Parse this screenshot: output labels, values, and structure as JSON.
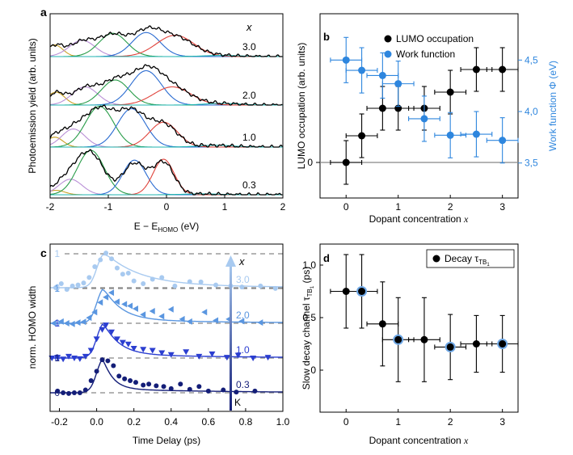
{
  "chart_data": [
    {
      "panel": "a",
      "type": "line",
      "ylabel": "Photoemission yield (arb. units)",
      "xlabel_main": "E − E",
      "xlabel_sub": "HOMO",
      "xlabel_unit": " (eV)",
      "xlim": [
        -2,
        2
      ],
      "xticks": [
        "-2",
        "-1",
        "0",
        "1",
        "2"
      ],
      "var_label": "x",
      "spectra": [
        {
          "label": "3.0",
          "peaks": [
            {
              "c": -1.92,
              "a": 0.3,
              "s": 0.14
            },
            {
              "c": -1.45,
              "a": 0.42,
              "s": 0.22
            },
            {
              "c": -0.92,
              "a": 0.6,
              "s": 0.24
            },
            {
              "c": -0.35,
              "a": 0.62,
              "s": 0.24
            },
            {
              "c": 0.15,
              "a": 0.55,
              "s": 0.32
            },
            {
              "c": 0.95,
              "a": 0.03,
              "s": 0.3
            }
          ]
        },
        {
          "label": "2.0",
          "peaks": [
            {
              "c": -1.9,
              "a": 0.32,
              "s": 0.15
            },
            {
              "c": -1.4,
              "a": 0.45,
              "s": 0.22
            },
            {
              "c": -0.88,
              "a": 0.62,
              "s": 0.24
            },
            {
              "c": -0.35,
              "a": 0.85,
              "s": 0.26
            },
            {
              "c": 0.1,
              "a": 0.45,
              "s": 0.32
            },
            {
              "c": 0.95,
              "a": 0.04,
              "s": 0.3
            }
          ]
        },
        {
          "label": "1.0",
          "peaks": [
            {
              "c": -1.92,
              "a": 0.22,
              "s": 0.14
            },
            {
              "c": -1.6,
              "a": 0.4,
              "s": 0.2
            },
            {
              "c": -1.15,
              "a": 0.9,
              "s": 0.24
            },
            {
              "c": -0.6,
              "a": 0.85,
              "s": 0.24
            },
            {
              "c": -0.05,
              "a": 0.55,
              "s": 0.24
            },
            {
              "c": 0.85,
              "a": 0.04,
              "s": 0.3
            }
          ]
        },
        {
          "label": "0.3",
          "peaks": [
            {
              "c": -1.9,
              "a": 0.1,
              "s": 0.15
            },
            {
              "c": -1.65,
              "a": 0.35,
              "s": 0.2
            },
            {
              "c": -1.3,
              "a": 1.0,
              "s": 0.23
            },
            {
              "c": -0.55,
              "a": 0.78,
              "s": 0.2
            },
            {
              "c": -0.05,
              "a": 0.8,
              "s": 0.18
            },
            {
              "c": 0.6,
              "a": 0.02,
              "s": 0.3
            }
          ]
        }
      ],
      "component_colors": [
        "#c9a227",
        "#b98fd6",
        "#2a9d4a",
        "#2a6bd1",
        "#e0443c",
        "#21b5b0"
      ]
    },
    {
      "panel": "b",
      "type": "scatter",
      "xlabel": "Dopant concentration",
      "xlabel_var": "x",
      "ylabel_left": "LUMO occupation (arb. units)",
      "ylabel_right": "Work function Φ (eV)",
      "xlim": [
        -0.5,
        3.3
      ],
      "xticks": [
        "0",
        "1",
        "2",
        "3"
      ],
      "yticks_right": [
        "3,5",
        "4,0",
        "4,5"
      ],
      "ylim_right": [
        3.16,
        4.95
      ],
      "left_tick": "0",
      "series": [
        {
          "name": "LUMO occupation",
          "color": "#000000",
          "x": [
            0,
            0.3,
            0.7,
            1.0,
            1.5,
            2.0,
            2.5,
            3.0
          ],
          "y": [
            0.0,
            0.33,
            0.67,
            0.67,
            0.67,
            0.87,
            1.15,
            1.15
          ],
          "xerr": [
            0.3,
            0.3,
            0.3,
            0.3,
            0.3,
            0.3,
            0.3,
            0.3
          ],
          "yerr": [
            0.27,
            0.27,
            0.27,
            0.27,
            0.27,
            0.27,
            0.27,
            0.27
          ]
        },
        {
          "name": "Work function",
          "color": "#2e86de",
          "x": [
            0,
            0.3,
            0.7,
            1.0,
            1.5,
            2.0,
            2.5,
            3.0
          ],
          "y": [
            4.5,
            4.4,
            4.35,
            4.27,
            3.93,
            3.77,
            3.78,
            3.72
          ],
          "xerr": [
            0.3,
            0.3,
            0.3,
            0.3,
            0.3,
            0.3,
            0.3,
            0.3
          ],
          "yerr": [
            0.22,
            0.22,
            0.22,
            0.22,
            0.22,
            0.22,
            0.22,
            0.22
          ]
        }
      ]
    },
    {
      "panel": "c",
      "type": "scatter",
      "xlabel": "Time Delay (ps)",
      "ylabel": "norm. HOMO width",
      "xlim": [
        -0.25,
        1.0
      ],
      "xticks": [
        "-0.2",
        "0.0",
        "0.2",
        "0.4",
        "0.6",
        "0.8",
        "1.0"
      ],
      "var_label": "x",
      "arrow_bottom_label": "K",
      "series": [
        {
          "label": "3.0",
          "marker": "circle",
          "color": "#a8caf0",
          "x": [
            -0.22,
            -0.19,
            -0.16,
            -0.13,
            -0.1,
            -0.07,
            -0.04,
            -0.01,
            0.02,
            0.05,
            0.08,
            0.11,
            0.14,
            0.17,
            0.2,
            0.25,
            0.3,
            0.35,
            0.42,
            0.5,
            0.56,
            0.64,
            0.72,
            0.78,
            0.88,
            0.96
          ],
          "y": [
            0.0,
            0.12,
            -0.05,
            0.05,
            0.08,
            0.14,
            0.3,
            0.62,
            0.82,
            1.02,
            0.85,
            0.58,
            0.4,
            0.43,
            0.2,
            0.12,
            0.25,
            0.3,
            0.05,
            0.18,
            0.17,
            0.08,
            0.05,
            0.02,
            0.05,
            -0.02
          ]
        },
        {
          "label": "2.0",
          "marker": "triangle-left",
          "color": "#5a96e0",
          "x": [
            -0.23,
            -0.19,
            -0.16,
            -0.13,
            -0.1,
            -0.07,
            -0.04,
            -0.01,
            0.02,
            0.05,
            0.08,
            0.11,
            0.15,
            0.18,
            0.21,
            0.25,
            0.3,
            0.35,
            0.4,
            0.46,
            0.5,
            0.58,
            0.64,
            0.71,
            0.78,
            0.88
          ],
          "y": [
            0.0,
            0.05,
            0.0,
            -0.02,
            0.02,
            0.04,
            0.16,
            0.32,
            0.6,
            0.75,
            0.88,
            0.62,
            0.55,
            0.5,
            0.42,
            0.25,
            0.35,
            0.2,
            0.4,
            0.12,
            0.05,
            0.32,
            0.08,
            0.12,
            0.06,
            0.02
          ]
        },
        {
          "label": "1.0",
          "marker": "triangle-down",
          "color": "#2b3ed0",
          "x": [
            -0.24,
            -0.21,
            -0.18,
            -0.15,
            -0.12,
            -0.09,
            -0.06,
            -0.03,
            0.0,
            0.03,
            0.05,
            0.08,
            0.11,
            0.14,
            0.17,
            0.2,
            0.25,
            0.3,
            0.35,
            0.4,
            0.48,
            0.55,
            0.62,
            0.7,
            0.76,
            0.84,
            0.92
          ],
          "y": [
            0.0,
            0.02,
            -0.03,
            0.05,
            0.0,
            -0.02,
            0.05,
            0.22,
            0.55,
            0.82,
            0.95,
            0.75,
            0.55,
            0.45,
            0.4,
            0.28,
            0.25,
            0.22,
            0.15,
            0.1,
            0.18,
            0.05,
            0.12,
            0.02,
            0.08,
            0.0,
            0.02
          ]
        },
        {
          "label": "0.3",
          "marker": "circle",
          "color": "#141e78",
          "x": [
            -0.21,
            -0.18,
            -0.15,
            -0.12,
            -0.09,
            -0.06,
            -0.03,
            0.0,
            0.03,
            0.06,
            0.09,
            0.12,
            0.15,
            0.18,
            0.21,
            0.25,
            0.28,
            0.32,
            0.36,
            0.4,
            0.45,
            0.5,
            0.55,
            0.6,
            0.68,
            0.75,
            0.85
          ],
          "y": [
            0.05,
            0.0,
            -0.02,
            0.0,
            0.0,
            0.08,
            0.35,
            0.62,
            0.95,
            0.92,
            0.78,
            0.48,
            0.4,
            0.35,
            0.3,
            0.22,
            0.25,
            0.2,
            0.18,
            0.12,
            0.25,
            0.1,
            0.18,
            0.05,
            0.08,
            0.02,
            0.05
          ]
        }
      ],
      "fit": {
        "tau_rise": 0.035,
        "tau_decay": [
          0.05,
          0.08,
          0.09,
          0.18
        ],
        "t0": 0.0
      },
      "level_labels": {
        "one": "1",
        "zero": "0"
      }
    },
    {
      "panel": "d",
      "type": "scatter",
      "xlabel": "Dopant concentration",
      "xlabel_var": "x",
      "ylabel": "Slow decay channel τ",
      "ylabel_sub": "TB",
      "ylabel_subsub": "1",
      "ylabel_unit": " (ps)",
      "legend": "Decay τ",
      "legend_sub": "TB",
      "legend_subsub": "1",
      "xlim": [
        -0.5,
        3.3
      ],
      "ylim": [
        -0.4,
        1.2
      ],
      "xticks": [
        "0",
        "1",
        "2",
        "3"
      ],
      "yticks": [
        "0",
        "0.5",
        "1.0"
      ],
      "series": [
        {
          "name": "Decay",
          "color": "#000000",
          "x": [
            0,
            0.3,
            0.7,
            1.0,
            1.5,
            2.0,
            2.5,
            3.0
          ],
          "y": [
            0.75,
            0.75,
            0.44,
            0.29,
            0.29,
            0.22,
            0.25,
            0.25
          ],
          "xerr": [
            0.3,
            0.3,
            0.3,
            0.3,
            0.3,
            0.3,
            0.3,
            0.3
          ],
          "yerr": [
            0.35,
            0.35,
            0.4,
            0.4,
            0.4,
            0.31,
            0.27,
            0.27
          ],
          "highlighted": [
            false,
            true,
            false,
            true,
            false,
            true,
            false,
            true
          ]
        }
      ]
    }
  ]
}
